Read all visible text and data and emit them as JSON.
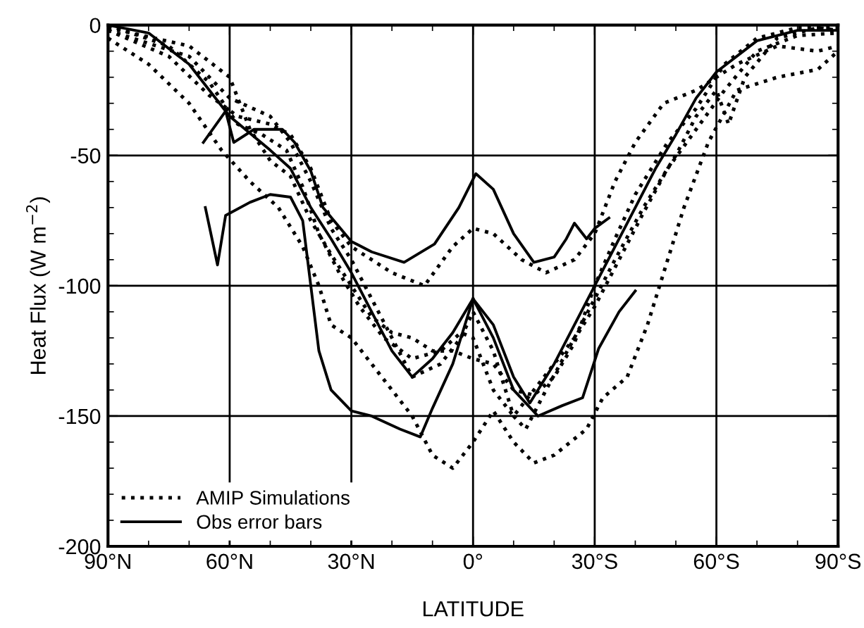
{
  "chart_data": {
    "type": "line",
    "xlabel": "LATITUDE",
    "ylabel": "Heat Flux (W m$^{−2}$)",
    "xlim": [
      90,
      -90
    ],
    "ylim": [
      -200,
      0
    ],
    "xticks": [
      {
        "value": 90,
        "label": "90°N"
      },
      {
        "value": 80,
        "label": null
      },
      {
        "value": 70,
        "label": null
      },
      {
        "value": 60,
        "label": "60°N"
      },
      {
        "value": 50,
        "label": null
      },
      {
        "value": 40,
        "label": null
      },
      {
        "value": 30,
        "label": "30°N"
      },
      {
        "value": 20,
        "label": null
      },
      {
        "value": 10,
        "label": null
      },
      {
        "value": 0,
        "label": "0°"
      },
      {
        "value": -10,
        "label": null
      },
      {
        "value": -20,
        "label": null
      },
      {
        "value": -30,
        "label": "30°S"
      },
      {
        "value": -40,
        "label": null
      },
      {
        "value": -50,
        "label": null
      },
      {
        "value": -60,
        "label": "60°S"
      },
      {
        "value": -70,
        "label": null
      },
      {
        "value": -80,
        "label": null
      },
      {
        "value": -90,
        "label": "90°S"
      }
    ],
    "yticks": [
      -200,
      {
        "value": -190,
        "label": null
      },
      {
        "value": -180,
        "label": null
      },
      {
        "value": -170,
        "label": null
      },
      {
        "value": -160,
        "label": null
      },
      -150,
      {
        "value": -140,
        "label": null
      },
      {
        "value": -130,
        "label": null
      },
      {
        "value": -120,
        "label": null
      },
      {
        "value": -110,
        "label": null
      },
      -100,
      {
        "value": -90,
        "label": null
      },
      {
        "value": -80,
        "label": null
      },
      {
        "value": -70,
        "label": null
      },
      {
        "value": -60,
        "label": null
      },
      -50,
      {
        "value": -40,
        "label": null
      },
      {
        "value": -30,
        "label": null
      },
      {
        "value": -20,
        "label": null
      },
      {
        "value": -10,
        "label": null
      },
      0
    ],
    "grid": true,
    "legend": "bottom left",
    "marker": "none",
    "series": [
      {
        "name": "AMIP Simulations",
        "color": "#000000",
        "line_style": "dotted",
        "x": [
          90,
          75,
          65,
          58,
          50,
          45,
          40,
          35,
          30,
          20,
          12,
          5,
          0,
          -5,
          -12,
          -18,
          -25,
          -30,
          -35,
          -40,
          -47,
          -55,
          -65,
          -75,
          -85,
          -90
        ],
        "values": [
          -2,
          -12,
          -27,
          -35,
          -38,
          -42,
          -55,
          -75,
          -85,
          -95,
          -100,
          -85,
          -78,
          -80,
          -90,
          -95,
          -90,
          -80,
          -60,
          -45,
          -30,
          -25,
          -15,
          -8,
          -10,
          -8
        ]
      },
      {
        "color": "#000000",
        "line_style": "dotted",
        "x": [
          90,
          80,
          70,
          62,
          55,
          48,
          42,
          38,
          35,
          30,
          25,
          15,
          10,
          5,
          0,
          -5,
          -10,
          -15,
          -20,
          -28,
          -32,
          -38,
          -43,
          -47,
          -52,
          -58,
          -65,
          -75,
          -85,
          -90
        ],
        "values": [
          -5,
          -15,
          -30,
          -48,
          -60,
          -70,
          -85,
          -100,
          -115,
          -120,
          -130,
          -150,
          -165,
          -170,
          -160,
          -148,
          -160,
          -168,
          -165,
          -155,
          -143,
          -135,
          -115,
          -95,
          -70,
          -45,
          -25,
          -20,
          -17,
          -10
        ]
      },
      {
        "color": "#000000",
        "line_style": "dotted",
        "x": [
          90,
          70,
          60,
          50,
          45,
          40,
          35,
          30,
          25,
          20,
          15,
          8,
          3,
          0,
          -5,
          -10,
          -13,
          -18,
          -25,
          -30,
          -35,
          -42,
          -50,
          -55,
          -60,
          -63,
          -67,
          -75,
          -85,
          -90
        ],
        "values": [
          -2,
          -12,
          -28,
          -35,
          -45,
          -60,
          -78,
          -90,
          -105,
          -120,
          -135,
          -130,
          -120,
          -110,
          -125,
          -150,
          -155,
          -140,
          -120,
          -105,
          -90,
          -70,
          -50,
          -35,
          -25,
          -38,
          -20,
          -5,
          -1,
          -2
        ]
      },
      {
        "color": "#000000",
        "line_style": "dotted",
        "x": [
          90,
          70,
          60,
          55,
          50,
          45,
          40,
          35,
          30,
          25,
          20,
          15,
          10,
          5,
          0,
          -5,
          -10,
          -15,
          -20,
          -25,
          -30,
          -35,
          -40,
          -48,
          -55,
          -62,
          -70,
          -80,
          -90
        ],
        "values": [
          -1,
          -8,
          -20,
          -40,
          -52,
          -58,
          -75,
          -88,
          -100,
          -112,
          -118,
          -120,
          -125,
          -125,
          -128,
          -130,
          -140,
          -142,
          -135,
          -122,
          -100,
          -82,
          -65,
          -45,
          -32,
          -15,
          -5,
          -1,
          -1
        ]
      },
      {
        "color": "#000000",
        "line_style": "dotted",
        "x": [
          90,
          75,
          65,
          58,
          52,
          46,
          42,
          38,
          33,
          28,
          22,
          15,
          8,
          3,
          0,
          -5,
          -10,
          -15,
          -20,
          -26,
          -30,
          -36,
          -42,
          -48,
          -55,
          -62,
          -70,
          -80,
          -90
        ],
        "values": [
          0,
          -8,
          -22,
          -38,
          -42,
          -48,
          -62,
          -80,
          -95,
          -108,
          -120,
          -128,
          -125,
          -118,
          -120,
          -140,
          -150,
          -140,
          -130,
          -118,
          -108,
          -90,
          -72,
          -55,
          -40,
          -25,
          -10,
          -4,
          -3
        ]
      },
      {
        "name": "Obs error bars",
        "color": "#000000",
        "line_style": "solid",
        "x": [
          90,
          80,
          70,
          60,
          50,
          45,
          40,
          35,
          30,
          25,
          20,
          15,
          10,
          5,
          0,
          -5,
          -10,
          -14,
          -20,
          -25,
          -30,
          -35,
          -40,
          -45,
          -50,
          -55,
          -60,
          -70,
          -80,
          -90
        ],
        "values": [
          0,
          -3,
          -15,
          -35,
          -48,
          -55,
          -70,
          -82,
          -95,
          -110,
          -125,
          -135,
          -128,
          -118,
          -105,
          -115,
          -135,
          -145,
          -130,
          -115,
          -100,
          -85,
          -70,
          -55,
          -42,
          -28,
          -18,
          -6,
          -2,
          -2
        ]
      },
      {
        "color": "#000000",
        "line_style": "solid",
        "x": [
          66,
          63,
          61,
          55,
          50,
          45,
          42,
          40,
          38,
          35,
          30,
          25,
          18,
          13,
          10,
          5,
          0
        ],
        "values": [
          -70,
          -92,
          -73,
          -68,
          -65,
          -66,
          -75,
          -100,
          -125,
          -140,
          -148,
          -150,
          -155,
          -158,
          -147,
          -130,
          -105
        ]
      },
      {
        "color": "#000000",
        "line_style": "solid",
        "x": [
          0,
          -5,
          -10,
          -16,
          -22,
          -27,
          -31,
          -36,
          -40
        ],
        "values": [
          -105,
          -120,
          -140,
          -150,
          -146,
          -143,
          -124,
          -110,
          -102
        ]
      },
      {
        "color": "#000000",
        "line_style": "solid",
        "x": [
          66.5,
          61,
          59,
          54,
          47,
          44,
          40,
          37,
          30,
          25,
          17,
          9.5,
          3.5,
          -0.7,
          -5,
          -10,
          -15,
          -20,
          -23,
          -25,
          -28,
          -30,
          -33.5
        ],
        "values": [
          -45,
          -33,
          -45,
          -40,
          -40,
          -45,
          -56,
          -70,
          -83,
          -87,
          -91,
          -84,
          -70,
          -57,
          -63,
          -80,
          -91,
          -89,
          -82,
          -76,
          -82,
          -78,
          -74
        ]
      }
    ]
  }
}
